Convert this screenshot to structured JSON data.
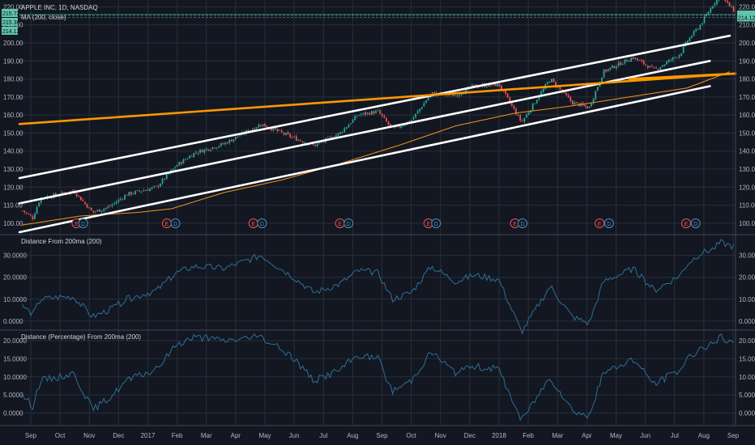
{
  "header": {
    "symbol_line": "APPLE INC, 1D, NASDAQ",
    "ma_line": "MA (200, close)",
    "left_badges": [
      "215.72",
      "215.36",
      "214.12"
    ],
    "right_badges": [
      "215.72",
      "215.36",
      "214.12"
    ]
  },
  "colors": {
    "background": "#131722",
    "grid": "#2a2e39",
    "up_candle": "#26a69a",
    "down_candle": "#ef5350",
    "ma_line": "#f7931a",
    "trend_white": "#ffffff",
    "trend_orange": "#ff9800",
    "indicator_line": "#2d6f97",
    "badge": "#5fc4ad",
    "earnings": "#ef5350",
    "dividend": "#4a90c2"
  },
  "x_axis": {
    "labels": [
      "Sep",
      "Oct",
      "Nov",
      "Dec",
      "2017",
      "Feb",
      "Mar",
      "Apr",
      "May",
      "Jun",
      "Jul",
      "Aug",
      "Sep",
      "Oct",
      "Nov",
      "Dec",
      "2018",
      "Feb",
      "Mar",
      "Apr",
      "May",
      "Jun",
      "Jul",
      "Aug",
      "Sep"
    ],
    "start": "2016-08-29",
    "end": "2018-09-21"
  },
  "chart_data": [
    {
      "type": "candlestick",
      "title": "APPLE INC, 1D, NASDAQ",
      "ylim": [
        95,
        222
      ],
      "y_ticks": [
        "100.00",
        "110.00",
        "120.00",
        "130.00",
        "140.00",
        "150.00",
        "160.00",
        "170.00",
        "180.00",
        "190.00",
        "200.00",
        "210.00",
        "220.00"
      ],
      "grid": true,
      "price_path": [
        {
          "date": "2016-09-01",
          "close": 107
        },
        {
          "date": "2016-09-12",
          "close": 103
        },
        {
          "date": "2016-09-20",
          "close": 114
        },
        {
          "date": "2016-10-10",
          "close": 116
        },
        {
          "date": "2016-10-25",
          "close": 118
        },
        {
          "date": "2016-11-14",
          "close": 106
        },
        {
          "date": "2016-12-01",
          "close": 109
        },
        {
          "date": "2016-12-20",
          "close": 116
        },
        {
          "date": "2017-01-20",
          "close": 120
        },
        {
          "date": "2017-02-10",
          "close": 132
        },
        {
          "date": "2017-03-01",
          "close": 139
        },
        {
          "date": "2017-04-01",
          "close": 144
        },
        {
          "date": "2017-05-10",
          "close": 155
        },
        {
          "date": "2017-06-10",
          "close": 148
        },
        {
          "date": "2017-07-05",
          "close": 143
        },
        {
          "date": "2017-08-01",
          "close": 150
        },
        {
          "date": "2017-08-20",
          "close": 160
        },
        {
          "date": "2017-09-10",
          "close": 162
        },
        {
          "date": "2017-09-25",
          "close": 152
        },
        {
          "date": "2017-10-15",
          "close": 157
        },
        {
          "date": "2017-11-05",
          "close": 172
        },
        {
          "date": "2017-12-01",
          "close": 171
        },
        {
          "date": "2017-12-20",
          "close": 176
        },
        {
          "date": "2018-01-15",
          "close": 177
        },
        {
          "date": "2018-02-08",
          "close": 156
        },
        {
          "date": "2018-03-10",
          "close": 180
        },
        {
          "date": "2018-04-02",
          "close": 167
        },
        {
          "date": "2018-04-20",
          "close": 164
        },
        {
          "date": "2018-05-05",
          "close": 184
        },
        {
          "date": "2018-06-05",
          "close": 192
        },
        {
          "date": "2018-06-28",
          "close": 185
        },
        {
          "date": "2018-07-25",
          "close": 194
        },
        {
          "date": "2018-08-01",
          "close": 201
        },
        {
          "date": "2018-08-15",
          "close": 210
        },
        {
          "date": "2018-08-29",
          "close": 222
        },
        {
          "date": "2018-09-05",
          "close": 226
        },
        {
          "date": "2018-09-12",
          "close": 222
        },
        {
          "date": "2018-09-19",
          "close": 218
        }
      ],
      "ma_200": [
        {
          "date": "2016-09-01",
          "value": 99
        },
        {
          "date": "2016-11-01",
          "value": 104
        },
        {
          "date": "2017-01-01",
          "value": 106
        },
        {
          "date": "2017-02-05",
          "value": 108
        },
        {
          "date": "2017-04-01",
          "value": 117
        },
        {
          "date": "2017-06-01",
          "value": 124
        },
        {
          "date": "2017-08-01",
          "value": 133
        },
        {
          "date": "2017-10-01",
          "value": 143
        },
        {
          "date": "2017-12-01",
          "value": 154
        },
        {
          "date": "2018-02-01",
          "value": 161
        },
        {
          "date": "2018-04-01",
          "value": 165
        },
        {
          "date": "2018-06-01",
          "value": 170
        },
        {
          "date": "2018-08-01",
          "value": 175
        },
        {
          "date": "2018-09-15",
          "value": 184
        }
      ],
      "trendlines": [
        {
          "color": "white",
          "points": [
            {
              "date": "2016-08-29",
              "value": 125
            },
            {
              "date": "2018-09-15",
              "value": 204
            }
          ]
        },
        {
          "color": "white",
          "points": [
            {
              "date": "2016-08-29",
              "value": 111
            },
            {
              "date": "2018-08-25",
              "value": 190
            }
          ]
        },
        {
          "color": "white",
          "points": [
            {
              "date": "2016-08-29",
              "value": 95
            },
            {
              "date": "2018-08-25",
              "value": 176
            }
          ]
        },
        {
          "color": "orange",
          "points": [
            {
              "date": "2016-08-29",
              "value": 155
            },
            {
              "date": "2018-09-21",
              "value": 183
            }
          ]
        },
        {
          "color": "orange",
          "points": [
            {
              "date": "2018-06-01",
              "value": 180
            },
            {
              "date": "2018-09-21",
              "value": 183
            }
          ]
        }
      ],
      "event_markers": [
        {
          "date": "2016-10-28",
          "label": "E",
          "kind": "earnings"
        },
        {
          "date": "2016-11-04",
          "label": "D",
          "kind": "dividend"
        },
        {
          "date": "2017-01-31",
          "label": "E",
          "kind": "earnings"
        },
        {
          "date": "2017-02-09",
          "label": "D",
          "kind": "dividend"
        },
        {
          "date": "2017-05-02",
          "label": "E",
          "kind": "earnings"
        },
        {
          "date": "2017-05-11",
          "label": "D",
          "kind": "dividend"
        },
        {
          "date": "2017-08-01",
          "label": "E",
          "kind": "earnings"
        },
        {
          "date": "2017-08-10",
          "label": "D",
          "kind": "dividend"
        },
        {
          "date": "2017-11-02",
          "label": "E",
          "kind": "earnings"
        },
        {
          "date": "2017-11-10",
          "label": "D",
          "kind": "dividend"
        },
        {
          "date": "2018-02-01",
          "label": "E",
          "kind": "earnings"
        },
        {
          "date": "2018-02-09",
          "label": "D",
          "kind": "dividend"
        },
        {
          "date": "2018-05-01",
          "label": "E",
          "kind": "earnings"
        },
        {
          "date": "2018-05-11",
          "label": "D",
          "kind": "dividend"
        },
        {
          "date": "2018-07-31",
          "label": "E",
          "kind": "earnings"
        },
        {
          "date": "2018-08-10",
          "label": "D",
          "kind": "dividend"
        }
      ]
    },
    {
      "type": "line",
      "title": "Distance From 200ma (200)",
      "ylim": [
        -3,
        38
      ],
      "y_ticks": [
        "0.0000",
        "10.0000",
        "20.0000",
        "30.0000"
      ],
      "grid": true,
      "series": [
        {
          "points": [
            {
              "date": "2016-09-01",
              "value": 7
            },
            {
              "date": "2016-09-12",
              "value": 3
            },
            {
              "date": "2016-09-20",
              "value": 10
            },
            {
              "date": "2016-10-10",
              "value": 11
            },
            {
              "date": "2016-10-25",
              "value": 11
            },
            {
              "date": "2016-11-14",
              "value": 2
            },
            {
              "date": "2016-12-01",
              "value": 5
            },
            {
              "date": "2016-12-20",
              "value": 10
            },
            {
              "date": "2017-01-20",
              "value": 14
            },
            {
              "date": "2017-02-10",
              "value": 22
            },
            {
              "date": "2017-03-01",
              "value": 25
            },
            {
              "date": "2017-04-01",
              "value": 24
            },
            {
              "date": "2017-05-10",
              "value": 30
            },
            {
              "date": "2017-06-10",
              "value": 21
            },
            {
              "date": "2017-07-05",
              "value": 13
            },
            {
              "date": "2017-08-01",
              "value": 17
            },
            {
              "date": "2017-08-20",
              "value": 23
            },
            {
              "date": "2017-09-10",
              "value": 22
            },
            {
              "date": "2017-09-25",
              "value": 10
            },
            {
              "date": "2017-10-15",
              "value": 13
            },
            {
              "date": "2017-11-05",
              "value": 25
            },
            {
              "date": "2017-12-01",
              "value": 18
            },
            {
              "date": "2017-12-20",
              "value": 21
            },
            {
              "date": "2018-01-15",
              "value": 19
            },
            {
              "date": "2018-02-08",
              "value": -5
            },
            {
              "date": "2018-03-10",
              "value": 16
            },
            {
              "date": "2018-04-02",
              "value": 2
            },
            {
              "date": "2018-04-20",
              "value": -1
            },
            {
              "date": "2018-05-05",
              "value": 18
            },
            {
              "date": "2018-06-05",
              "value": 24
            },
            {
              "date": "2018-06-28",
              "value": 14
            },
            {
              "date": "2018-07-25",
              "value": 21
            },
            {
              "date": "2018-08-01",
              "value": 26
            },
            {
              "date": "2018-08-15",
              "value": 31
            },
            {
              "date": "2018-08-29",
              "value": 33
            },
            {
              "date": "2018-09-05",
              "value": 36
            },
            {
              "date": "2018-09-12",
              "value": 35
            },
            {
              "date": "2018-09-19",
              "value": 34
            }
          ]
        }
      ]
    },
    {
      "type": "line",
      "title": "Distance (Percentage) From 200ma (200)",
      "ylim": [
        -3,
        22
      ],
      "y_ticks": [
        "0.0000",
        "5.0000",
        "10.0000",
        "15.0000",
        "20.0000"
      ],
      "grid": true,
      "series": [
        {
          "points": [
            {
              "date": "2016-09-01",
              "value": 5
            },
            {
              "date": "2016-09-12",
              "value": 2
            },
            {
              "date": "2016-09-20",
              "value": 9
            },
            {
              "date": "2016-10-10",
              "value": 10
            },
            {
              "date": "2016-10-25",
              "value": 11
            },
            {
              "date": "2016-11-14",
              "value": 1
            },
            {
              "date": "2016-12-01",
              "value": 4
            },
            {
              "date": "2016-12-20",
              "value": 9
            },
            {
              "date": "2017-01-20",
              "value": 12
            },
            {
              "date": "2017-02-10",
              "value": 19
            },
            {
              "date": "2017-03-01",
              "value": 21
            },
            {
              "date": "2017-04-01",
              "value": 20
            },
            {
              "date": "2017-05-10",
              "value": 21
            },
            {
              "date": "2017-06-10",
              "value": 16
            },
            {
              "date": "2017-07-05",
              "value": 9
            },
            {
              "date": "2017-08-01",
              "value": 12
            },
            {
              "date": "2017-08-20",
              "value": 16
            },
            {
              "date": "2017-09-10",
              "value": 15
            },
            {
              "date": "2017-09-25",
              "value": 6
            },
            {
              "date": "2017-10-15",
              "value": 9
            },
            {
              "date": "2017-11-05",
              "value": 17
            },
            {
              "date": "2017-12-01",
              "value": 11
            },
            {
              "date": "2017-12-20",
              "value": 13
            },
            {
              "date": "2018-01-15",
              "value": 12
            },
            {
              "date": "2018-02-08",
              "value": -2
            },
            {
              "date": "2018-03-10",
              "value": 10
            },
            {
              "date": "2018-04-02",
              "value": 1
            },
            {
              "date": "2018-04-20",
              "value": -1
            },
            {
              "date": "2018-05-05",
              "value": 11
            },
            {
              "date": "2018-06-05",
              "value": 15
            },
            {
              "date": "2018-06-28",
              "value": 8
            },
            {
              "date": "2018-07-25",
              "value": 12
            },
            {
              "date": "2018-08-01",
              "value": 15
            },
            {
              "date": "2018-08-15",
              "value": 18
            },
            {
              "date": "2018-08-29",
              "value": 19
            },
            {
              "date": "2018-09-05",
              "value": 21
            },
            {
              "date": "2018-09-12",
              "value": 20
            },
            {
              "date": "2018-09-19",
              "value": 19
            }
          ]
        }
      ]
    }
  ]
}
